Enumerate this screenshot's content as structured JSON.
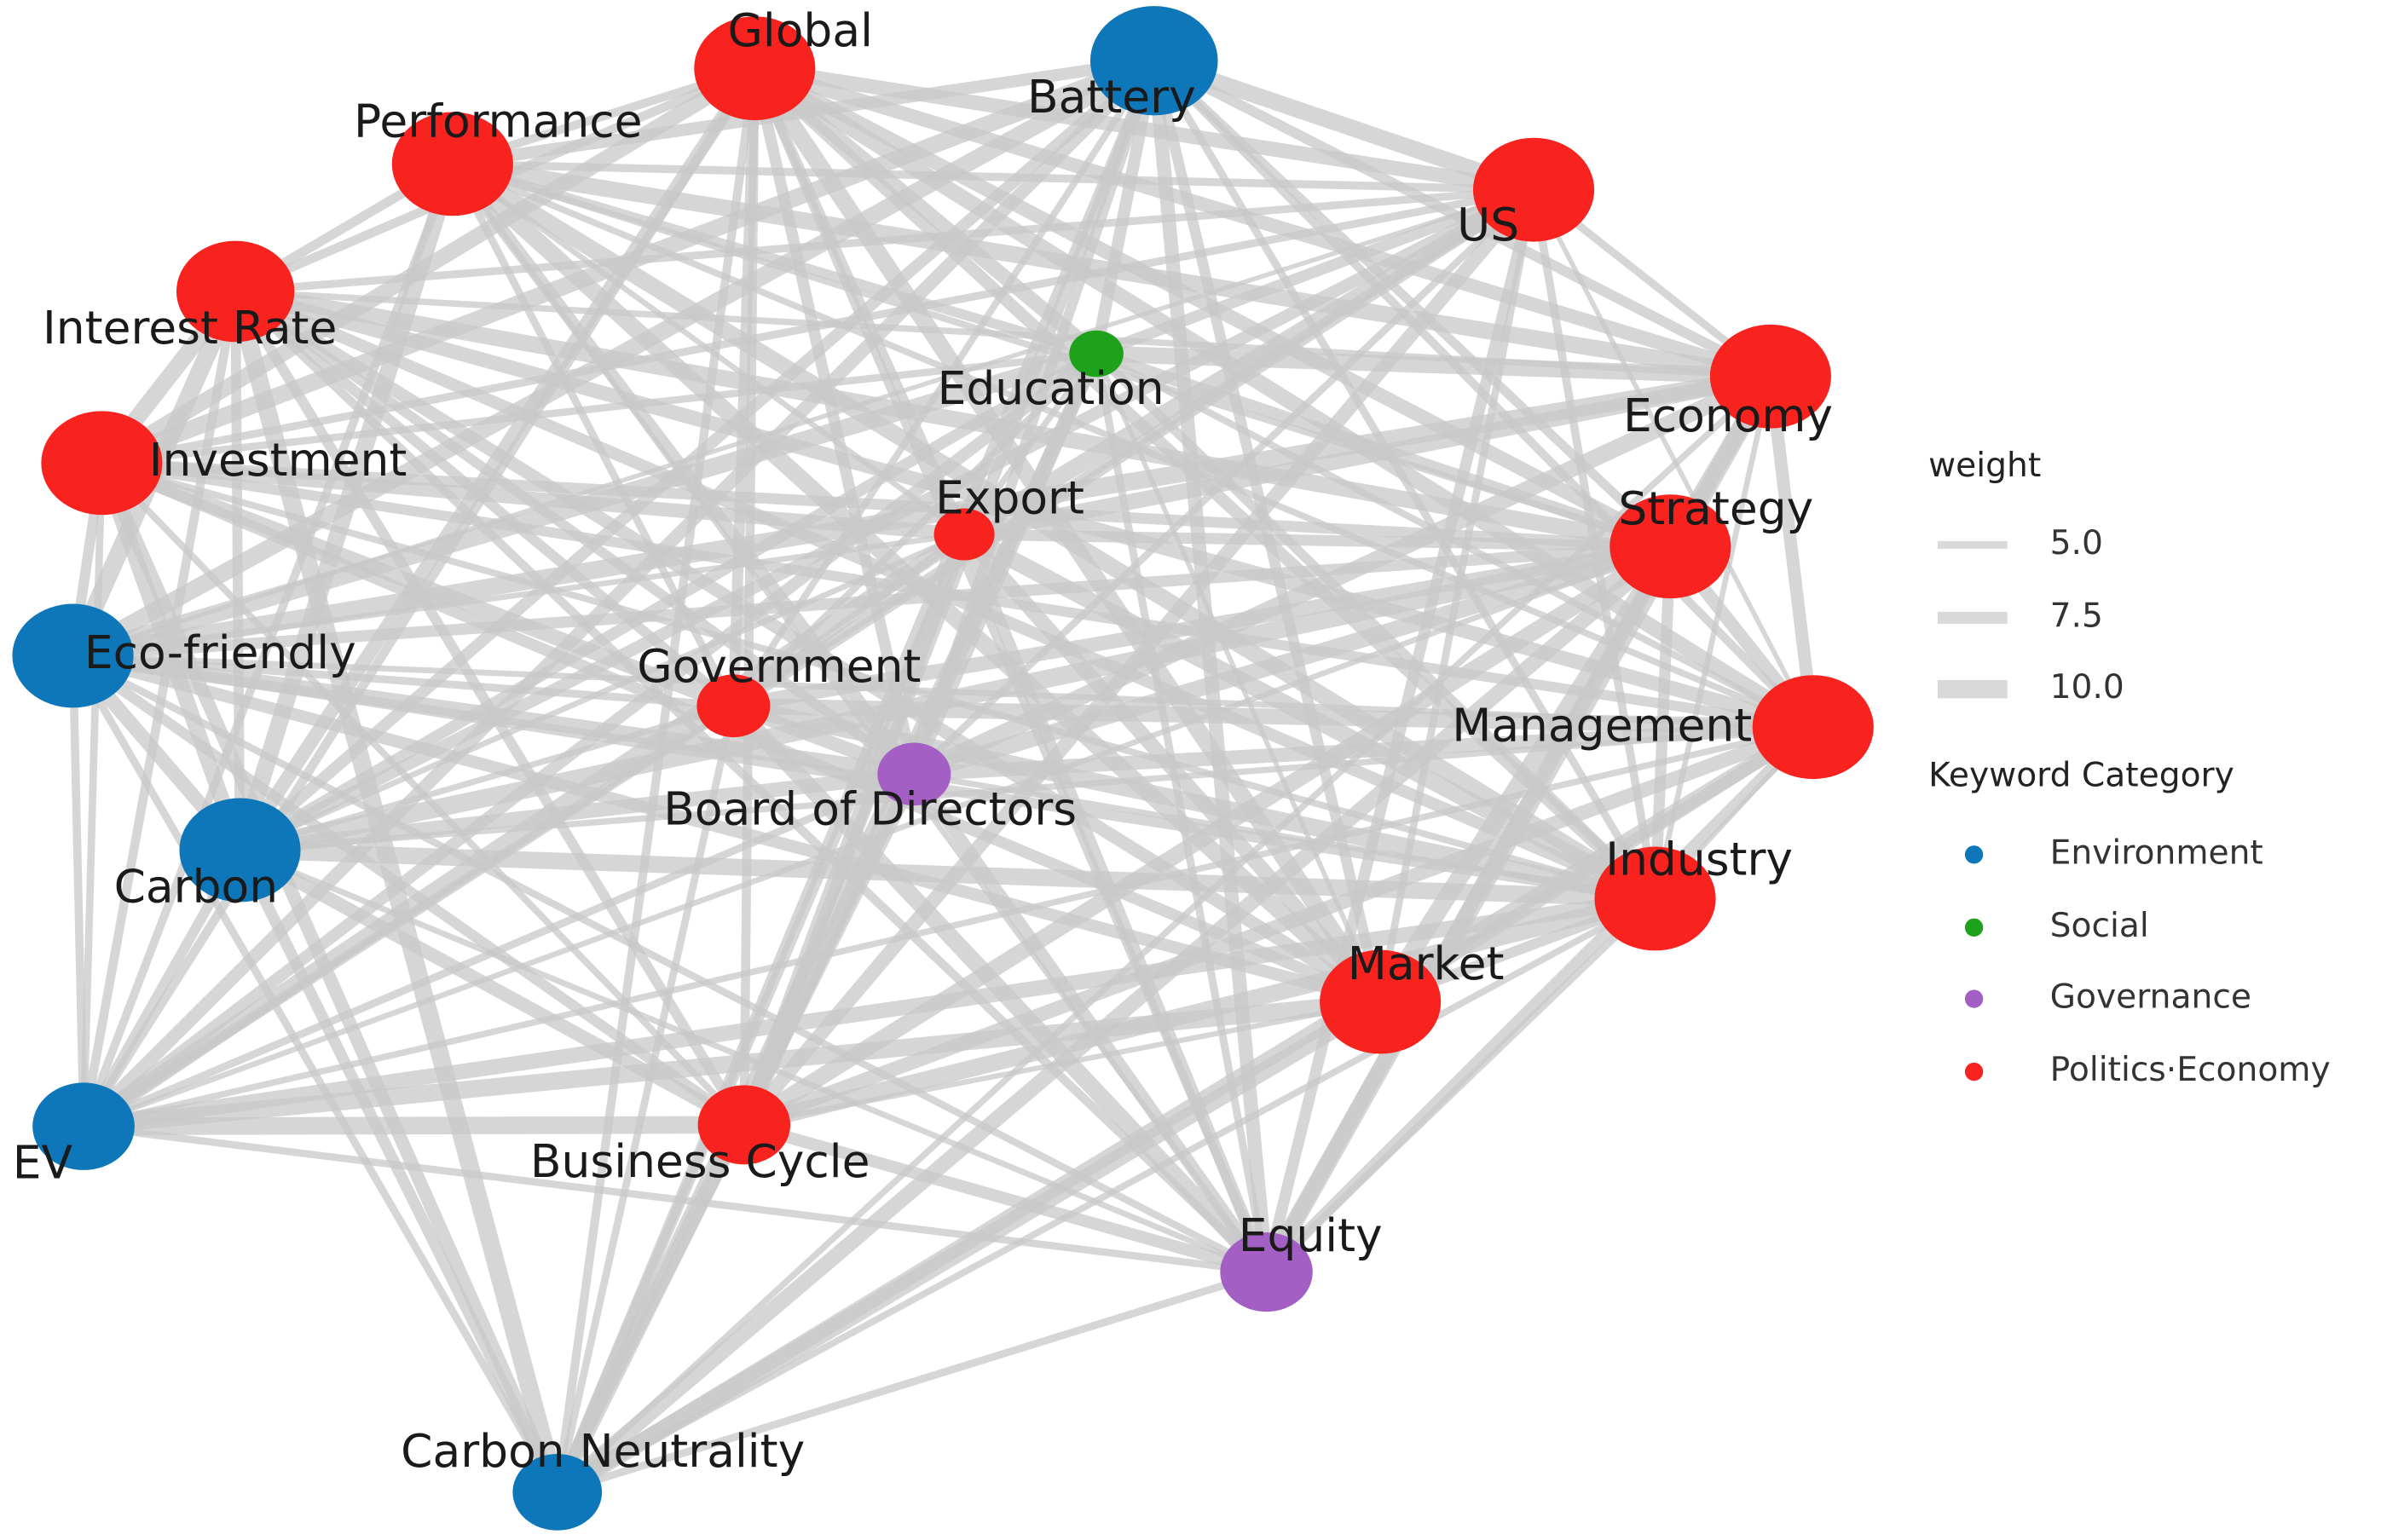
{
  "nodes": [
    {
      "label": "Global",
      "color": "#f8221f"
    },
    {
      "label": "Battery",
      "color": "#0d77b9"
    },
    {
      "label": "Performance",
      "color": "#f8221f"
    },
    {
      "label": "US",
      "color": "#f8221f"
    },
    {
      "label": "Interest Rate",
      "color": "#f8221f"
    },
    {
      "label": "Education",
      "color": "#1ea21c"
    },
    {
      "label": "Economy",
      "color": "#f8221f"
    },
    {
      "label": "Investment",
      "color": "#f8221f"
    },
    {
      "label": "Export",
      "color": "#f8221f"
    },
    {
      "label": "Strategy",
      "color": "#f8221f"
    },
    {
      "label": "Eco-friendly",
      "color": "#0d77b9"
    },
    {
      "label": "Government",
      "color": "#f8221f"
    },
    {
      "label": "Management",
      "color": "#f8221f"
    },
    {
      "label": "Board of Directors",
      "color": "#a35fc4"
    },
    {
      "label": "Carbon",
      "color": "#0d77b9"
    },
    {
      "label": "Industry",
      "color": "#f8221f"
    },
    {
      "label": "Market",
      "color": "#f8221f"
    },
    {
      "label": "EV",
      "color": "#0d77b9"
    },
    {
      "label": "Business Cycle",
      "color": "#f8221f"
    },
    {
      "label": "Equity",
      "color": "#a35fc4"
    },
    {
      "label": "Carbon Neutrality",
      "color": "#0d77b9"
    }
  ],
  "legend": {
    "weight_title": "weight",
    "weights": [
      "5.0",
      "7.5",
      "10.0"
    ],
    "category_title": "Keyword Category",
    "categories": [
      {
        "label": "Environment",
        "color": "#0d77b9"
      },
      {
        "label": "Social",
        "color": "#1ea21c"
      },
      {
        "label": "Governance",
        "color": "#a35fc4"
      },
      {
        "label": "Politics·Economy",
        "color": "#f8221f"
      }
    ]
  }
}
